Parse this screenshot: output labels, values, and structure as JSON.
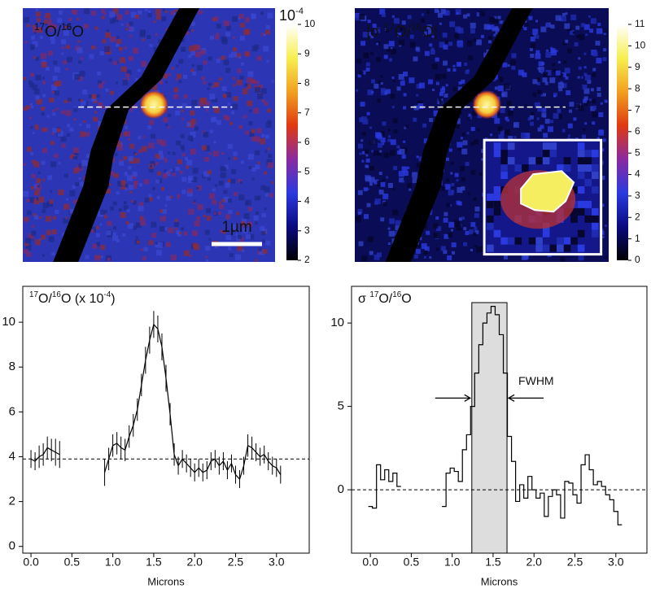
{
  "chart_data": [
    {
      "type": "image",
      "title_parts": [
        {
          "text": "17",
          "sup": true
        },
        {
          "text": "O/"
        },
        {
          "text": "16",
          "sup": true
        },
        {
          "text": "O"
        }
      ],
      "background": "#2c36b4",
      "speckle_colors": [
        "#7a2a6a",
        "#8a2c3c",
        "#1f2a8c",
        "#3a46d0"
      ],
      "colormap": [
        "#000000",
        "#0a0a80",
        "#2a3ae0",
        "#8a2aa0",
        "#e03a10",
        "#f2a020",
        "#f6ef50",
        "#ffffff"
      ],
      "clim": [
        2,
        10
      ],
      "cticks": [
        2,
        3,
        4,
        5,
        6,
        7,
        8,
        9,
        10
      ],
      "colorbar_label_parts": [
        {
          "text": "10"
        },
        {
          "text": "-4",
          "sup": true
        }
      ],
      "scale_bar": "1µm"
    },
    {
      "type": "image",
      "title_parts": [
        {
          "text": "|σ "
        },
        {
          "text": "17",
          "sup": true
        },
        {
          "text": "O/"
        },
        {
          "text": "16",
          "sup": true
        },
        {
          "text": "O|"
        }
      ],
      "background": "#0a0c55",
      "speckle_colors": [
        "#1e2ab0",
        "#2a3ae0",
        "#060630",
        "#3040c8"
      ],
      "colormap": [
        "#000000",
        "#0a0a80",
        "#2a3ae0",
        "#8a2aa0",
        "#e03a10",
        "#f2a020",
        "#f6ef50",
        "#ffffff"
      ],
      "clim": [
        0,
        11
      ],
      "cticks": [
        0,
        1,
        2,
        3,
        4,
        5,
        6,
        7,
        8,
        9,
        10,
        11
      ]
    },
    {
      "type": "errorline",
      "title_parts": [
        {
          "text": "17",
          "sup": true
        },
        {
          "text": "O/"
        },
        {
          "text": "16",
          "sup": true
        },
        {
          "text": "O (x 10"
        },
        {
          "text": "-4",
          "sup": true
        },
        {
          "text": ")"
        }
      ],
      "x_label": "Microns",
      "x": [
        0,
        0.05,
        0.1,
        0.15,
        0.2,
        0.25,
        0.3,
        0.35,
        0.6,
        0.9,
        0.95,
        1.0,
        1.05,
        1.1,
        1.15,
        1.2,
        1.25,
        1.3,
        1.35,
        1.4,
        1.45,
        1.5,
        1.55,
        1.6,
        1.65,
        1.7,
        1.75,
        1.8,
        1.85,
        1.9,
        1.95,
        2.0,
        2.05,
        2.1,
        2.15,
        2.2,
        2.25,
        2.3,
        2.35,
        2.4,
        2.45,
        2.5,
        2.55,
        2.6,
        2.65,
        2.7,
        2.75,
        2.8,
        2.85,
        2.9,
        2.95,
        3.0,
        3.05
      ],
      "values": [
        3.9,
        3.8,
        4.0,
        4.1,
        4.4,
        4.3,
        4.2,
        4.1,
        null,
        3.3,
        3.9,
        4.5,
        4.6,
        4.4,
        4.3,
        4.9,
        5.4,
        6.1,
        7.2,
        8.3,
        9.2,
        9.9,
        9.7,
        8.9,
        7.5,
        5.9,
        4.1,
        3.6,
        3.9,
        3.7,
        3.5,
        3.3,
        3.5,
        3.3,
        3.4,
        3.8,
        3.9,
        3.6,
        3.8,
        3.4,
        3.7,
        3.2,
        3.0,
        3.6,
        4.5,
        4.4,
        4.2,
        4.0,
        4.1,
        3.8,
        3.6,
        3.5,
        3.2
      ],
      "errors": [
        0.4,
        0.4,
        0.5,
        0.5,
        0.5,
        0.5,
        0.6,
        0.6,
        null,
        0.6,
        0.5,
        0.5,
        0.5,
        0.5,
        0.5,
        0.5,
        0.5,
        0.5,
        0.5,
        0.6,
        0.6,
        0.6,
        0.6,
        0.6,
        0.6,
        0.5,
        0.5,
        0.4,
        0.4,
        0.4,
        0.4,
        0.4,
        0.4,
        0.4,
        0.4,
        0.4,
        0.4,
        0.4,
        0.4,
        0.4,
        0.4,
        0.4,
        0.4,
        0.4,
        0.5,
        0.5,
        0.4,
        0.4,
        0.4,
        0.4,
        0.4,
        0.4,
        0.4
      ],
      "color": "#000000",
      "reference_line": 3.9,
      "xlim": [
        -0.1,
        3.4
      ],
      "ylim": [
        -0.3,
        11.6
      ],
      "xticks": [
        {
          "value": 0,
          "label": "0.0"
        },
        0.5,
        {
          "value": 1,
          "label": "1.0"
        },
        1.5,
        {
          "value": 2,
          "label": "2.0"
        },
        2.5,
        {
          "value": 3,
          "label": "3.0"
        }
      ],
      "yticks": [
        0,
        2,
        4,
        6,
        8,
        10
      ]
    },
    {
      "type": "step",
      "title_parts": [
        {
          "text": "σ "
        },
        {
          "text": "17",
          "sup": true
        },
        {
          "text": "O/"
        },
        {
          "text": "16",
          "sup": true
        },
        {
          "text": "O"
        }
      ],
      "x_label": "Microns",
      "annotation": "FWHM",
      "x": [
        0,
        0.05,
        0.1,
        0.15,
        0.2,
        0.25,
        0.3,
        0.35,
        0.6,
        0.9,
        0.95,
        1.0,
        1.05,
        1.1,
        1.15,
        1.2,
        1.25,
        1.3,
        1.35,
        1.4,
        1.45,
        1.5,
        1.55,
        1.6,
        1.65,
        1.7,
        1.75,
        1.8,
        1.85,
        1.9,
        1.95,
        2.0,
        2.05,
        2.1,
        2.15,
        2.2,
        2.25,
        2.3,
        2.35,
        2.4,
        2.45,
        2.5,
        2.55,
        2.6,
        2.65,
        2.7,
        2.75,
        2.8,
        2.85,
        2.9,
        2.95,
        3.0,
        3.05
      ],
      "values": [
        -1.0,
        -1.1,
        1.5,
        0.6,
        1.2,
        0.5,
        1.0,
        0.2,
        null,
        -1.0,
        1.0,
        1.3,
        1.1,
        0.5,
        2.4,
        3.3,
        5.0,
        7.0,
        8.7,
        10.0,
        10.6,
        11.0,
        10.5,
        9.3,
        7.0,
        3.2,
        1.7,
        -0.7,
        0.3,
        -0.5,
        0.8,
        0.0,
        -0.5,
        -0.2,
        -1.6,
        -0.4,
        0.0,
        -0.3,
        -1.7,
        0.5,
        0.4,
        -0.3,
        -0.8,
        1.5,
        2.1,
        1.2,
        0.3,
        0.5,
        0.2,
        -0.3,
        -0.6,
        -1.3,
        -2.1
      ],
      "fwhm": [
        1.24,
        1.67
      ],
      "shade_color": "#dddddd",
      "color": "#000000",
      "reference_line": 0,
      "xlim": [
        -0.23,
        3.38
      ],
      "ylim": [
        -3.8,
        12.2
      ],
      "xticks": [
        {
          "value": 0,
          "label": "0.0"
        },
        0.5,
        {
          "value": 1,
          "label": "1.0"
        },
        1.5,
        {
          "value": 2,
          "label": "2.0"
        },
        2.5,
        {
          "value": 3,
          "label": "3.0"
        }
      ],
      "yticks": [
        0,
        5,
        10
      ]
    }
  ]
}
